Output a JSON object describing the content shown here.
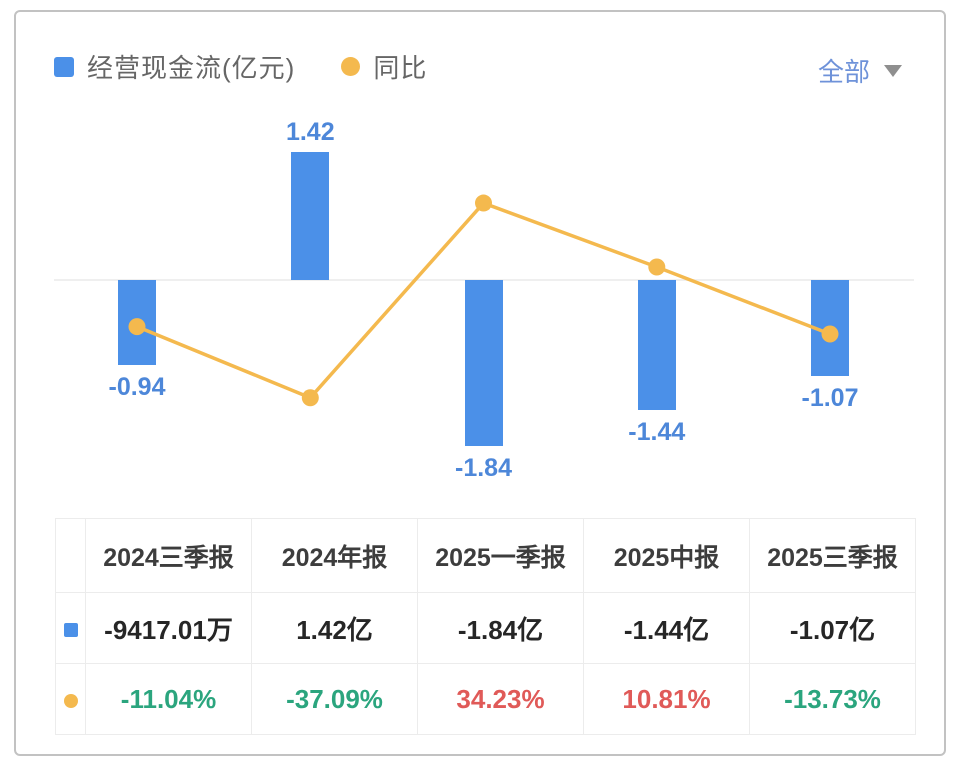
{
  "legend": {
    "series1_label": "经营现金流(亿元)",
    "series2_label": "同比",
    "series1_color": "#4b90e8",
    "series2_color": "#f4b94e"
  },
  "filter": {
    "label": "全部",
    "icon": "caret-down"
  },
  "chart_data": {
    "type": "bar+line",
    "categories": [
      "2024三季报",
      "2024年报",
      "2025一季报",
      "2025中报",
      "2025三季报"
    ],
    "series": [
      {
        "name": "经营现金流(亿元)",
        "type": "bar",
        "color": "#4b90e8",
        "values": [
          -0.94,
          1.42,
          -1.84,
          -1.44,
          -1.07
        ],
        "labels": [
          "-0.94",
          "1.42",
          "-1.84",
          "-1.44",
          "-1.07"
        ]
      },
      {
        "name": "同比",
        "type": "line",
        "color": "#f4b94e",
        "values": [
          -11.04,
          -37.09,
          34.23,
          10.81,
          -13.73
        ]
      }
    ],
    "bar_unit": "亿元",
    "line_unit": "%",
    "grid": "zero-line-only",
    "legend_position": "top-left"
  },
  "table": {
    "columns": [
      "2024三季报",
      "2024年报",
      "2025一季报",
      "2025中报",
      "2025三季报"
    ],
    "rows": [
      {
        "marker": "blue-square",
        "marker_color": "#4b90e8",
        "cells": [
          {
            "text": "-9417.01万",
            "color": "#262626"
          },
          {
            "text": "1.42亿",
            "color": "#262626"
          },
          {
            "text": "-1.84亿",
            "color": "#262626"
          },
          {
            "text": "-1.44亿",
            "color": "#262626"
          },
          {
            "text": "-1.07亿",
            "color": "#262626"
          }
        ]
      },
      {
        "marker": "yellow-dot",
        "marker_color": "#f4b94e",
        "cells": [
          {
            "text": "-11.04%",
            "color": "#2ba57e"
          },
          {
            "text": "-37.09%",
            "color": "#2ba57e"
          },
          {
            "text": "34.23%",
            "color": "#e05a58"
          },
          {
            "text": "10.81%",
            "color": "#e05a58"
          },
          {
            "text": "-13.73%",
            "color": "#2ba57e"
          }
        ]
      }
    ]
  },
  "colors": {
    "bar_blue": "#4b90e8",
    "line_yellow": "#f4b94e",
    "label_blue": "#4d87d9",
    "value_green": "#2ba57e",
    "value_red": "#e05a58",
    "zero_line": "#efefef",
    "card_border": "#c2c2c2"
  }
}
